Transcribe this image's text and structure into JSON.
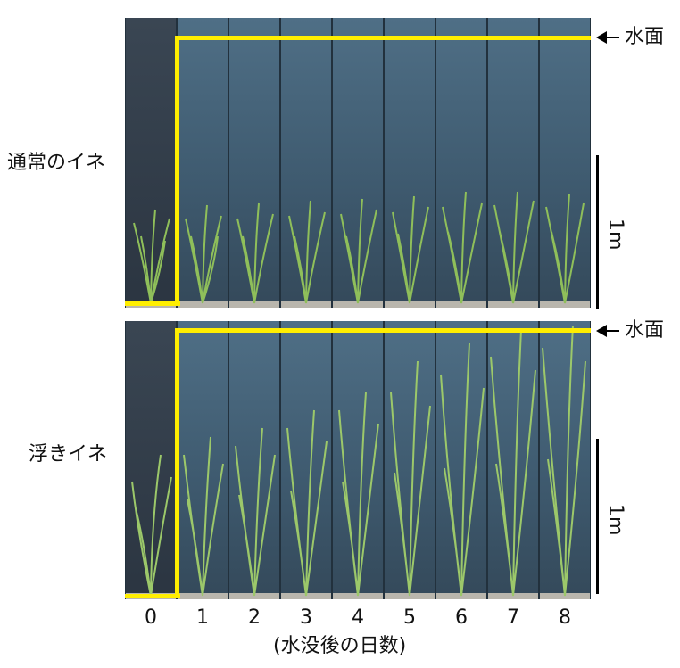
{
  "rows": [
    {
      "label": "通常のイネ"
    },
    {
      "label": "浮きイネ"
    }
  ],
  "water_surface_label": "水面",
  "scale_label": "1m",
  "days": [
    "0",
    "1",
    "2",
    "3",
    "4",
    "5",
    "6",
    "7",
    "8"
  ],
  "xlabel": "(水没後の日数)",
  "colors": {
    "highlight": "#ffee00",
    "water": "#3f5b70",
    "plant": "#8fbf5a"
  }
}
